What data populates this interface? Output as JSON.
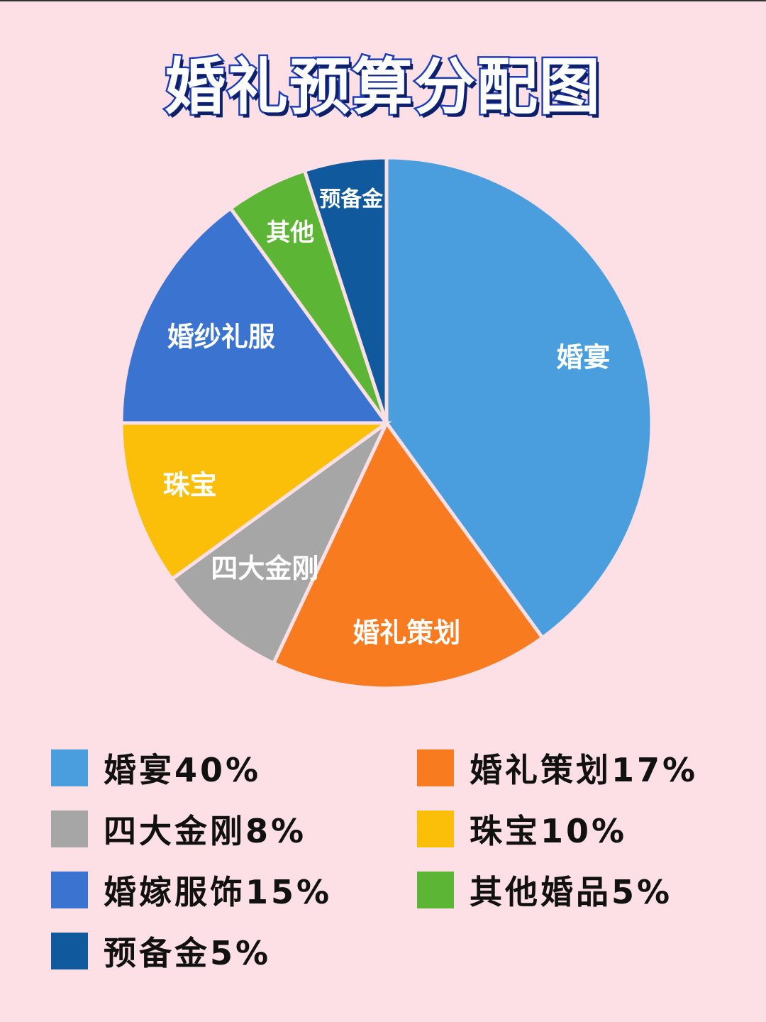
{
  "title": "婚礼预算分配图",
  "chart_data": {
    "type": "pie",
    "title": "婚礼预算分配图",
    "slices": [
      {
        "label": "婚宴",
        "value": 40,
        "color": "#4a9ede"
      },
      {
        "label": "婚礼策划",
        "value": 17,
        "color": "#f97b1f"
      },
      {
        "label": "四大金刚",
        "value": 8,
        "color": "#a6a6a6"
      },
      {
        "label": "珠宝",
        "value": 10,
        "color": "#fbbf0a"
      },
      {
        "label": "婚纱礼服",
        "value": 15,
        "color": "#3a74d0"
      },
      {
        "label": "其他",
        "value": 5,
        "color": "#5cb534"
      },
      {
        "label": "预备金",
        "value": 5,
        "color": "#10599c"
      }
    ],
    "legend": [
      {
        "text": "婚宴40%",
        "color": "#4a9ede"
      },
      {
        "text": "婚礼策划17%",
        "color": "#f97b1f"
      },
      {
        "text": "四大金刚8%",
        "color": "#a6a6a6"
      },
      {
        "text": "珠宝10%",
        "color": "#fbbf0a"
      },
      {
        "text": "婚嫁服饰15%",
        "color": "#3a74d0"
      },
      {
        "text": "其他婚品5%",
        "color": "#5cb534"
      },
      {
        "text": "预备金5%",
        "color": "#10599c"
      }
    ],
    "legend_position": "bottom"
  }
}
